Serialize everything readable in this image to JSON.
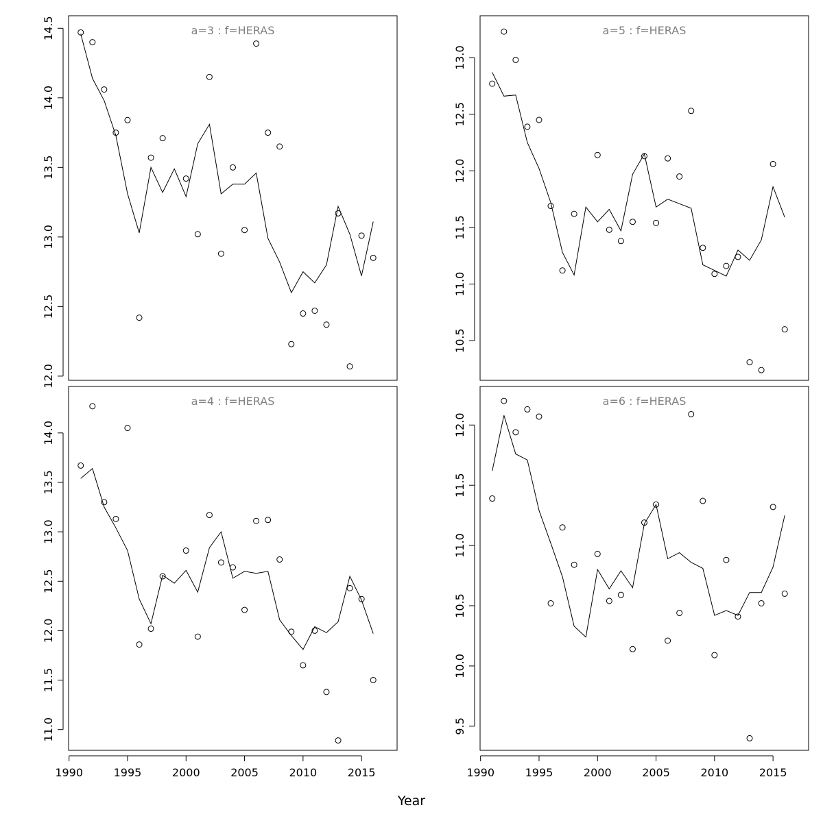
{
  "figure": {
    "xlabel": "Year"
  },
  "chart_data": [
    {
      "type": "line",
      "title": "a=3  :  f=HERAS",
      "xlabel": "",
      "ylabel": "",
      "xlim": [
        1989.96,
        2018.04
      ],
      "ylim": [
        11.97,
        14.59
      ],
      "xticks": [
        1990,
        1995,
        2000,
        2005,
        2010,
        2015
      ],
      "xtick_labels": [
        "1990",
        "1995",
        "2000",
        "2005",
        "2010",
        "2015"
      ],
      "yticks": [
        12.0,
        12.5,
        13.0,
        13.5,
        14.0,
        14.5
      ],
      "ytick_labels": [
        "12.0",
        "12.5",
        "13.0",
        "13.5",
        "14.0",
        "14.5"
      ],
      "show_xtick_labels": false,
      "grid": false,
      "series": [
        {
          "style": "points",
          "x": [
            1991,
            1992,
            1993,
            1994,
            1995,
            1996,
            1997,
            1998,
            1999,
            2000,
            2001,
            2002,
            2003,
            2004,
            2005,
            2006,
            2007,
            2008,
            2009,
            2010,
            2011,
            2012,
            2013,
            2014,
            2015,
            2016
          ],
          "y": [
            14.47,
            14.4,
            14.06,
            13.75,
            13.84,
            12.42,
            13.57,
            13.71,
            null,
            13.42,
            13.02,
            14.15,
            12.88,
            13.5,
            13.05,
            14.39,
            13.75,
            13.65,
            12.23,
            12.45,
            12.47,
            12.37,
            13.17,
            12.07,
            13.01,
            12.85
          ]
        },
        {
          "style": "line",
          "x": [
            1991,
            1992,
            1993,
            1994,
            1995,
            1996,
            1997,
            1998,
            1999,
            2000,
            2001,
            2002,
            2003,
            2004,
            2005,
            2006,
            2007,
            2008,
            2009,
            2010,
            2011,
            2012,
            2013,
            2014,
            2015,
            2016
          ],
          "y": [
            14.46,
            14.14,
            13.98,
            13.73,
            13.31,
            13.03,
            13.5,
            13.32,
            13.49,
            13.29,
            13.67,
            13.81,
            13.31,
            13.38,
            13.38,
            13.46,
            12.99,
            12.82,
            12.6,
            12.75,
            12.67,
            12.8,
            13.22,
            13.02,
            12.72,
            13.11
          ]
        }
      ]
    },
    {
      "type": "line",
      "title": "a=5  :  f=HERAS",
      "xlabel": "",
      "ylabel": "",
      "xlim": [
        1989.96,
        2018.04
      ],
      "ylim": [
        10.15,
        13.37
      ],
      "xticks": [
        1990,
        1995,
        2000,
        2005,
        2010,
        2015
      ],
      "xtick_labels": [
        "1990",
        "1995",
        "2000",
        "2005",
        "2010",
        "2015"
      ],
      "yticks": [
        10.5,
        11.0,
        11.5,
        12.0,
        12.5,
        13.0
      ],
      "ytick_labels": [
        "10.5",
        "11.0",
        "11.5",
        "12.0",
        "12.5",
        "13.0"
      ],
      "show_xtick_labels": false,
      "grid": false,
      "series": [
        {
          "style": "points",
          "x": [
            1991,
            1992,
            1993,
            1994,
            1995,
            1996,
            1997,
            1998,
            1999,
            2000,
            2001,
            2002,
            2003,
            2004,
            2005,
            2006,
            2007,
            2008,
            2009,
            2010,
            2011,
            2012,
            2013,
            2014,
            2015,
            2016
          ],
          "y": [
            12.77,
            13.23,
            12.98,
            12.39,
            12.45,
            11.69,
            11.12,
            11.62,
            null,
            12.14,
            11.48,
            11.38,
            11.55,
            12.13,
            11.54,
            12.11,
            11.95,
            12.53,
            11.32,
            11.09,
            11.16,
            11.24,
            10.31,
            10.24,
            12.06,
            10.6
          ]
        },
        {
          "style": "line",
          "x": [
            1991,
            1992,
            1993,
            1994,
            1995,
            1996,
            1997,
            1998,
            1999,
            2000,
            2001,
            2002,
            2003,
            2004,
            2005,
            2006,
            2007,
            2008,
            2009,
            2010,
            2011,
            2012,
            2013,
            2014,
            2015,
            2016
          ],
          "y": [
            12.87,
            12.66,
            12.67,
            12.25,
            12.02,
            11.72,
            11.28,
            11.08,
            11.68,
            11.55,
            11.66,
            11.47,
            11.97,
            12.15,
            11.68,
            11.75,
            11.71,
            11.67,
            11.17,
            11.12,
            11.07,
            11.3,
            11.21,
            11.39,
            11.86,
            11.59
          ]
        }
      ]
    },
    {
      "type": "line",
      "title": "a=4  :  f=HERAS",
      "xlabel": "",
      "ylabel": "",
      "xlim": [
        1989.96,
        2018.04
      ],
      "ylim": [
        10.79,
        14.47
      ],
      "xticks": [
        1990,
        1995,
        2000,
        2005,
        2010,
        2015
      ],
      "xtick_labels": [
        "1990",
        "1995",
        "2000",
        "2005",
        "2010",
        "2015"
      ],
      "yticks": [
        11.0,
        11.5,
        12.0,
        12.5,
        13.0,
        13.5,
        14.0
      ],
      "ytick_labels": [
        "11.0",
        "11.5",
        "12.0",
        "12.5",
        "13.0",
        "13.5",
        "14.0"
      ],
      "show_xtick_labels": true,
      "grid": false,
      "series": [
        {
          "style": "points",
          "x": [
            1991,
            1992,
            1993,
            1994,
            1995,
            1996,
            1997,
            1998,
            1999,
            2000,
            2001,
            2002,
            2003,
            2004,
            2005,
            2006,
            2007,
            2008,
            2009,
            2010,
            2011,
            2012,
            2013,
            2014,
            2015,
            2016
          ],
          "y": [
            13.67,
            14.27,
            13.3,
            13.13,
            14.05,
            11.86,
            12.02,
            12.55,
            null,
            12.81,
            11.94,
            13.17,
            12.69,
            12.64,
            12.21,
            13.11,
            13.12,
            12.72,
            11.99,
            11.65,
            12.0,
            11.38,
            10.89,
            12.43,
            12.32,
            11.5
          ]
        },
        {
          "style": "line",
          "x": [
            1991,
            1992,
            1993,
            1994,
            1995,
            1996,
            1997,
            1998,
            1999,
            2000,
            2001,
            2002,
            2003,
            2004,
            2005,
            2006,
            2007,
            2008,
            2009,
            2010,
            2011,
            2012,
            2013,
            2014,
            2015,
            2016
          ],
          "y": [
            13.54,
            13.64,
            13.25,
            13.04,
            12.81,
            12.32,
            12.07,
            12.56,
            12.48,
            12.61,
            12.39,
            12.84,
            13.0,
            12.53,
            12.6,
            12.58,
            12.6,
            12.11,
            11.95,
            11.81,
            12.04,
            11.98,
            12.09,
            12.55,
            12.31,
            11.97
          ]
        }
      ]
    },
    {
      "type": "line",
      "title": "a=6  :  f=HERAS",
      "xlabel": "",
      "ylabel": "",
      "xlim": [
        1989.96,
        2018.04
      ],
      "ylim": [
        9.3,
        12.32
      ],
      "xticks": [
        1990,
        1995,
        2000,
        2005,
        2010,
        2015
      ],
      "xtick_labels": [
        "1990",
        "1995",
        "2000",
        "2005",
        "2010",
        "2015"
      ],
      "yticks": [
        9.5,
        10.0,
        10.5,
        11.0,
        11.5,
        12.0
      ],
      "ytick_labels": [
        "9.5",
        "10.0",
        "10.5",
        "11.0",
        "11.5",
        "12.0"
      ],
      "show_xtick_labels": true,
      "grid": false,
      "series": [
        {
          "style": "points",
          "x": [
            1991,
            1992,
            1993,
            1994,
            1995,
            1996,
            1997,
            1998,
            1999,
            2000,
            2001,
            2002,
            2003,
            2004,
            2005,
            2006,
            2007,
            2008,
            2009,
            2010,
            2011,
            2012,
            2013,
            2014,
            2015,
            2016
          ],
          "y": [
            11.39,
            12.2,
            11.94,
            12.13,
            12.07,
            10.52,
            11.15,
            10.84,
            null,
            10.93,
            10.54,
            10.59,
            10.14,
            11.19,
            11.34,
            10.21,
            10.44,
            12.09,
            11.37,
            10.09,
            10.88,
            10.41,
            9.4,
            10.52,
            11.32,
            10.6
          ]
        },
        {
          "style": "line",
          "x": [
            1991,
            1992,
            1993,
            1994,
            1995,
            1996,
            1997,
            1998,
            1999,
            2000,
            2001,
            2002,
            2003,
            2004,
            2005,
            2006,
            2007,
            2008,
            2009,
            2010,
            2011,
            2012,
            2013,
            2014,
            2015,
            2016
          ],
          "y": [
            11.62,
            12.08,
            11.76,
            11.71,
            11.29,
            11.02,
            10.74,
            10.33,
            10.24,
            10.8,
            10.64,
            10.79,
            10.65,
            11.18,
            11.34,
            10.89,
            10.94,
            10.86,
            10.81,
            10.42,
            10.46,
            10.42,
            10.61,
            10.61,
            10.82,
            11.25
          ]
        }
      ]
    }
  ]
}
